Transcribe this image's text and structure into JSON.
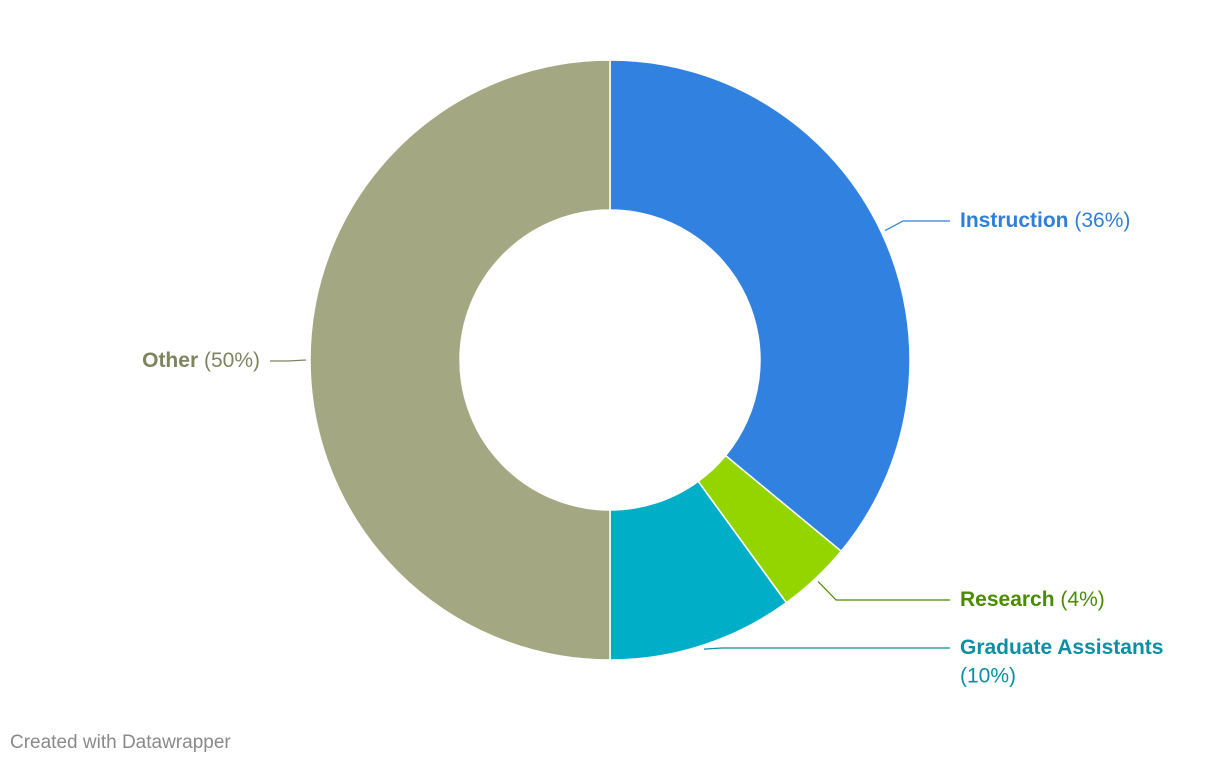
{
  "chart_data": {
    "type": "donut",
    "categories": [
      "Instruction",
      "Research",
      "Graduate Assistants",
      "Other"
    ],
    "values": [
      36,
      4,
      10,
      50
    ],
    "value_labels": [
      "(36%)",
      "(4%)",
      "(10%)",
      "(50%)"
    ],
    "colors": [
      "#3182e0",
      "#94d500",
      "#00aec8",
      "#a3a882"
    ],
    "label_colors": [
      "#2e7fdc",
      "#4b8b00",
      "#0a8fa3",
      "#7f8460"
    ],
    "footer": "Created with Datawrapper"
  }
}
